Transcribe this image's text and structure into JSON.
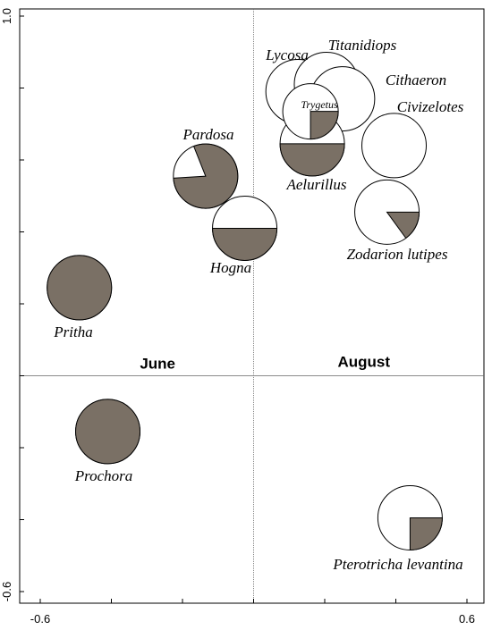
{
  "colors": {
    "shaded": "#7a7065",
    "open": "#ffffff",
    "stroke": "#000000",
    "axis": "#000000",
    "gridline": "#666666"
  },
  "chart_data": {
    "type": "scatter",
    "xlim": [
      -0.6,
      0.6
    ],
    "ylim": [
      -0.6,
      1.0
    ],
    "x_ticks": [
      {
        "value": -0.6,
        "label": "-0.6"
      },
      {
        "value": 0.6,
        "label": "0.6"
      }
    ],
    "y_ticks": [
      {
        "value": 1.0,
        "label": "1.0"
      },
      {
        "value": -0.6,
        "label": "-0.6"
      }
    ],
    "reference_lines": {
      "x": 0.0,
      "y": 0.0
    },
    "quadrant_labels": [
      {
        "text": "June",
        "x": -0.27,
        "y": 0.02
      },
      {
        "text": "August",
        "x": 0.31,
        "y": 0.025
      }
    ],
    "points": [
      {
        "name": "Pritha",
        "x": -0.49,
        "y": 0.245,
        "shaded_fraction": 1.0
      },
      {
        "name": "Prochora",
        "x": -0.41,
        "y": -0.155,
        "shaded_fraction": 1.0
      },
      {
        "name": "Pardosa",
        "x": -0.135,
        "y": 0.555,
        "shaded_fraction": 0.8
      },
      {
        "name": "Hogna",
        "x": -0.025,
        "y": 0.41,
        "shaded_fraction": 0.5
      },
      {
        "name": "Lycosa",
        "x": 0.125,
        "y": 0.79,
        "shaded_fraction": 0.0
      },
      {
        "name": "Titanidiops",
        "x": 0.205,
        "y": 0.81,
        "shaded_fraction": 0.0
      },
      {
        "name": "Cithaeron",
        "x": 0.25,
        "y": 0.77,
        "shaded_fraction": 0.0
      },
      {
        "name": "Trygetus",
        "x": 0.16,
        "y": 0.735,
        "shaded_fraction": 0.25
      },
      {
        "name": "Aelurillus",
        "x": 0.165,
        "y": 0.645,
        "shaded_fraction": 0.5
      },
      {
        "name": "Civizelotes",
        "x": 0.395,
        "y": 0.64,
        "shaded_fraction": 0.0
      },
      {
        "name": "Zodarion lutipes",
        "x": 0.375,
        "y": 0.455,
        "shaded_fraction": 0.15
      },
      {
        "name": "Pterotricha levantina",
        "x": 0.44,
        "y": -0.395,
        "shaded_fraction": 0.25
      }
    ]
  },
  "labels": [
    {
      "point": "Pritha",
      "text": "Pritha"
    },
    {
      "point": "Prochora",
      "text": "Prochora"
    },
    {
      "point": "Pardosa",
      "text": "Pardosa"
    },
    {
      "point": "Hogna",
      "text": "Hogna"
    },
    {
      "point": "Lycosa",
      "text": "Lycosa"
    },
    {
      "point": "Titanidiops",
      "text": "Titanidiops"
    },
    {
      "point": "Cithaeron",
      "text": "Cithaeron"
    },
    {
      "point": "Civizelotes",
      "text": "Civizelotes"
    },
    {
      "point": "Trygetus",
      "text": "Trygetus"
    },
    {
      "point": "Aelurillus",
      "text": "Aelurillus"
    },
    {
      "point": "Zodarion lutipes",
      "text": "Zodarion lutipes"
    },
    {
      "point": "Pterotricha levantina",
      "text": "Pterotricha levantina"
    }
  ]
}
